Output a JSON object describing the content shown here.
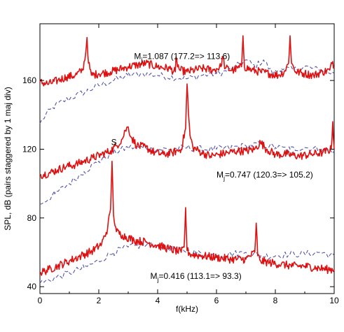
{
  "chart_data": {
    "type": "line",
    "xlabel": "f(kHz)",
    "ylabel": "SPL, dB (pairs staggered by 1 maj div)",
    "xlim": [
      0,
      10
    ],
    "ylim": [
      36,
      193
    ],
    "xticks": [
      0,
      2,
      4,
      6,
      8,
      10
    ],
    "yticks": [
      40,
      80,
      120,
      160
    ],
    "grid": false,
    "colors": {
      "measured": "#dd1111",
      "comparison": "#5555aa"
    },
    "annotations": [
      {
        "prefix": "M",
        "subscript": "j",
        "text": "=1.087 (177.2=> 113.6)",
        "x": 3.2,
        "y": 172.5
      },
      {
        "prefix": "M",
        "subscript": "j",
        "text": "=0.747 (120.3=> 105.2)",
        "x": 6.0,
        "y": 103.5
      },
      {
        "prefix": "M",
        "subscript": "j",
        "text": "=0.416 (113.1=> 93.3)",
        "x": 3.75,
        "y": 44.5
      }
    ],
    "stray_marks": [
      {
        "text": "S",
        "x": 2.42,
        "y": 122.5
      }
    ],
    "series": [
      {
        "style": "measured",
        "x": [
          0,
          0.3,
          0.6,
          0.9,
          1.2,
          1.45,
          1.55,
          1.6,
          1.65,
          1.75,
          2.0,
          2.4,
          2.8,
          3.0,
          3.3,
          3.6,
          4.0,
          4.4,
          4.6,
          4.62,
          4.75,
          5.0,
          5.5,
          5.9,
          6.15,
          6.2,
          6.3,
          6.6,
          6.85,
          6.9,
          6.95,
          7.2,
          7.5,
          7.8,
          8.1,
          8.3,
          8.45,
          8.5,
          8.55,
          8.7,
          9.0,
          9.3,
          9.6,
          9.85,
          9.95,
          10.0
        ],
        "y": [
          159,
          158,
          160,
          162,
          163,
          166,
          175,
          185,
          170,
          163,
          164,
          165,
          167,
          168,
          169,
          170,
          168,
          167,
          165,
          172,
          166,
          165,
          167,
          166,
          168,
          174,
          167,
          166,
          168,
          186,
          168,
          166,
          165,
          164,
          163,
          165,
          170,
          186,
          170,
          165,
          164,
          163,
          165,
          166,
          171,
          168
        ]
      },
      {
        "style": "comparison",
        "x": [
          0,
          0.2,
          0.5,
          0.8,
          1.2,
          1.6,
          2.0,
          2.5,
          3.0,
          3.5,
          4.0,
          4.5,
          5.0,
          5.5,
          6.0,
          6.5,
          7.0,
          7.3,
          7.6,
          7.9,
          8.2,
          8.6,
          9.0,
          9.5,
          10.0
        ],
        "y": [
          135,
          140,
          145,
          148,
          151,
          154,
          157,
          160,
          163,
          164,
          163,
          162,
          161,
          163,
          164,
          166,
          172,
          168,
          172,
          164,
          167,
          166,
          168,
          166,
          164
        ]
      },
      {
        "style": "measured",
        "x": [
          0,
          0.3,
          0.6,
          0.9,
          1.2,
          1.5,
          1.8,
          2.1,
          2.4,
          2.6,
          2.8,
          2.9,
          3.0,
          3.1,
          3.3,
          3.6,
          3.9,
          4.2,
          4.5,
          4.8,
          4.95,
          5.0,
          5.05,
          5.1,
          5.2,
          5.5,
          5.8,
          6.1,
          6.4,
          6.7,
          7.0,
          7.3,
          7.5,
          7.7,
          8.0,
          8.4,
          8.8,
          9.2,
          9.6,
          9.9,
          9.95,
          10.0
        ],
        "y": [
          105,
          106,
          108,
          110,
          111,
          113,
          115,
          117,
          119,
          122,
          126,
          131,
          133,
          127,
          122,
          121,
          118,
          117,
          118,
          120,
          132,
          158,
          140,
          128,
          121,
          118,
          116,
          117,
          118,
          119,
          119,
          120,
          124,
          120,
          117,
          117,
          116,
          117,
          118,
          120,
          136,
          120
        ]
      },
      {
        "style": "comparison",
        "x": [
          0,
          0.5,
          1.0,
          1.5,
          2.0,
          2.5,
          3.0,
          3.5,
          4.0,
          4.5,
          5.0,
          5.5,
          6.0,
          6.5,
          7.0,
          7.5,
          8.0,
          8.5,
          9.0,
          9.5,
          10.0
        ],
        "y": [
          88,
          94,
          100,
          107,
          113,
          118,
          121,
          121,
          120,
          120,
          121,
          120,
          120,
          121,
          122,
          123,
          121,
          120,
          121,
          120,
          119
        ]
      },
      {
        "style": "measured",
        "x": [
          0,
          0.3,
          0.6,
          1.0,
          1.4,
          1.8,
          2.1,
          2.3,
          2.4,
          2.45,
          2.5,
          2.6,
          2.8,
          3.2,
          3.6,
          4.0,
          4.4,
          4.8,
          4.9,
          4.95,
          5.0,
          5.1,
          5.5,
          6.0,
          6.5,
          7.0,
          7.3,
          7.35,
          7.4,
          7.5,
          7.8,
          8.2,
          8.6,
          9.0,
          9.4,
          9.8,
          10.0
        ],
        "y": [
          48,
          50,
          52,
          55,
          58,
          61,
          65,
          74,
          85,
          113,
          82,
          72,
          70,
          67,
          66,
          64,
          62,
          60,
          63,
          86,
          61,
          59,
          58,
          57,
          56,
          56,
          60,
          77,
          58,
          55,
          54,
          53,
          52,
          52,
          51,
          50,
          50
        ]
      },
      {
        "style": "comparison",
        "x": [
          0,
          0.5,
          1.0,
          1.5,
          2.0,
          2.5,
          3.0,
          3.5,
          4.0,
          4.5,
          5.0,
          5.5,
          6.0,
          6.5,
          7.0,
          7.5,
          8.0,
          8.5,
          9.0,
          9.5,
          10.0
        ],
        "y": [
          42,
          45,
          48,
          51,
          55,
          60,
          63,
          64,
          64,
          62,
          61,
          59,
          58,
          59,
          60,
          58,
          58,
          59,
          59,
          60,
          58
        ]
      }
    ]
  }
}
